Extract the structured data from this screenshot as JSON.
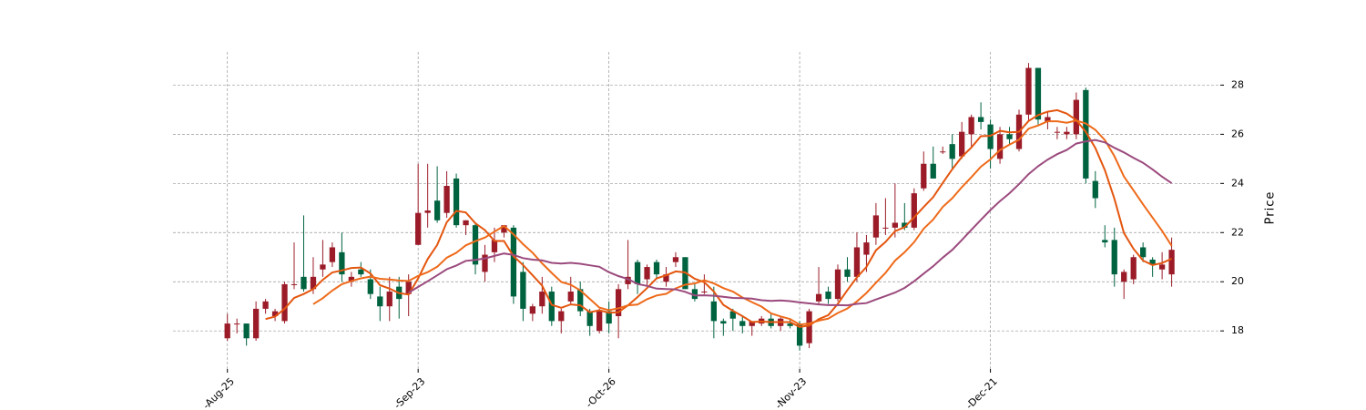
{
  "chart_data": {
    "type": "candlestick",
    "ylabel": "Price",
    "up_color": "#9b1c28",
    "down_color": "#006340",
    "grid": true,
    "xlim": [
      -5.7,
      104.1
    ],
    "xticks": [
      {
        "value": 0,
        "label": "-Aug-25"
      },
      {
        "value": 20,
        "label": "-Sep-23"
      },
      {
        "value": 40,
        "label": "-Oct-26"
      },
      {
        "value": 60,
        "label": "-Nov-23"
      },
      {
        "value": 80,
        "label": "-Dec-21"
      }
    ],
    "ylim": [
      16.45,
      29.35
    ],
    "yticks": [
      18,
      20,
      22,
      24,
      26,
      28
    ],
    "open": [
      17.7,
      18.3,
      18.3,
      17.7,
      18.9,
      18.6,
      18.4,
      19.9,
      20.2,
      19.7,
      20.5,
      20.8,
      21.2,
      20.0,
      20.5,
      20.1,
      19.4,
      19.0,
      19.8,
      19.5,
      21.5,
      22.8,
      23.3,
      22.8,
      24.2,
      22.3,
      22.3,
      20.4,
      21.2,
      22.0,
      22.2,
      20.4,
      18.7,
      19.0,
      19.6,
      18.4,
      19.2,
      19.7,
      18.8,
      18.0,
      18.8,
      18.6,
      19.9,
      20.8,
      20.1,
      20.8,
      20.0,
      20.8,
      21.0,
      19.7,
      19.6,
      19.2,
      18.4,
      18.8,
      18.4,
      18.2,
      18.3,
      18.5,
      18.2,
      18.3,
      18.3,
      17.5,
      19.2,
      19.6,
      19.3,
      20.5,
      20.2,
      21.1,
      21.8,
      22.2,
      22.2,
      22.4,
      22.2,
      23.8,
      24.8,
      25.3,
      25.6,
      25.1,
      26.0,
      26.7,
      26.4,
      25.0,
      26.0,
      25.4,
      26.8,
      28.7,
      26.5,
      26.1,
      26.0,
      26.0,
      27.8,
      24.1,
      21.7,
      21.7,
      20.0,
      20.1,
      21.4,
      20.9,
      20.5,
      20.3
    ],
    "high": [
      18.7,
      18.5,
      18.3,
      19.2,
      19.3,
      18.9,
      20.0,
      21.6,
      22.7,
      21.0,
      21.7,
      21.6,
      22.0,
      20.4,
      20.8,
      20.5,
      19.8,
      20.2,
      20.2,
      20.3,
      24.8,
      24.8,
      24.7,
      24.5,
      24.4,
      22.5,
      22.4,
      21.5,
      22.2,
      22.3,
      22.3,
      20.8,
      19.1,
      20.2,
      19.8,
      18.9,
      20.2,
      20.0,
      18.9,
      18.9,
      19.2,
      19.9,
      21.7,
      20.9,
      20.7,
      20.9,
      20.6,
      21.2,
      21.0,
      19.9,
      20.3,
      19.8,
      18.5,
      18.9,
      18.6,
      18.4,
      18.6,
      18.7,
      18.6,
      18.5,
      18.4,
      18.9,
      20.6,
      19.8,
      20.7,
      21.0,
      22.0,
      21.9,
      23.2,
      23.4,
      24.0,
      23.2,
      23.8,
      25.3,
      25.5,
      25.5,
      26.0,
      26.5,
      26.8,
      27.3,
      26.6,
      26.3,
      26.3,
      27.0,
      28.9,
      28.7,
      26.9,
      26.3,
      26.3,
      27.7,
      27.9,
      24.5,
      22.3,
      22.2,
      20.5,
      21.1,
      21.6,
      21.0,
      21.2,
      21.8
    ],
    "low": [
      17.6,
      17.9,
      17.4,
      17.6,
      18.7,
      18.4,
      18.3,
      19.7,
      19.6,
      19.5,
      20.2,
      20.6,
      20.0,
      19.8,
      20.2,
      19.3,
      18.4,
      18.4,
      18.5,
      18.6,
      21.5,
      22.2,
      22.4,
      22.6,
      22.2,
      21.9,
      20.3,
      20.0,
      20.8,
      21.8,
      19.1,
      18.4,
      18.4,
      18.7,
      18.2,
      17.9,
      19.1,
      18.6,
      17.8,
      17.9,
      17.9,
      17.7,
      19.7,
      19.5,
      19.8,
      20.1,
      19.8,
      20.6,
      19.7,
      19.2,
      19.5,
      17.7,
      17.8,
      18.0,
      17.9,
      17.8,
      18.2,
      18.1,
      18.0,
      18.1,
      17.2,
      17.3,
      19.1,
      19.1,
      19.2,
      20.0,
      20.0,
      20.4,
      21.5,
      21.9,
      21.8,
      22.1,
      22.1,
      23.7,
      24.2,
      25.2,
      24.6,
      25.0,
      25.5,
      26.2,
      24.6,
      24.8,
      25.6,
      25.3,
      26.5,
      26.4,
      26.2,
      25.8,
      25.8,
      25.8,
      24.0,
      23.0,
      21.4,
      19.8,
      19.3,
      19.9,
      20.8,
      20.2,
      20.1,
      19.8
    ],
    "close": [
      18.3,
      18.3,
      17.7,
      18.9,
      19.2,
      18.8,
      19.9,
      19.9,
      19.7,
      20.2,
      20.7,
      21.4,
      20.3,
      20.2,
      20.3,
      19.5,
      19.0,
      19.6,
      19.3,
      20.0,
      22.8,
      22.9,
      22.5,
      23.9,
      22.3,
      22.5,
      20.7,
      21.1,
      21.7,
      22.3,
      19.4,
      18.9,
      19.0,
      19.6,
      18.4,
      18.8,
      19.6,
      18.8,
      18.2,
      18.8,
      18.3,
      19.7,
      20.2,
      19.9,
      20.6,
      20.3,
      20.3,
      21.0,
      19.7,
      19.3,
      19.6,
      18.4,
      18.3,
      18.5,
      18.2,
      18.4,
      18.5,
      18.2,
      18.5,
      18.2,
      17.4,
      18.8,
      19.5,
      19.3,
      20.5,
      20.2,
      21.4,
      21.6,
      22.7,
      22.2,
      22.4,
      22.2,
      23.6,
      24.8,
      24.2,
      25.3,
      25.0,
      26.1,
      26.7,
      26.5,
      25.4,
      26.0,
      25.8,
      26.8,
      28.7,
      26.6,
      26.7,
      26.1,
      26.1,
      27.4,
      24.2,
      23.4,
      21.6,
      20.3,
      20.4,
      21.0,
      21.0,
      20.7,
      20.7,
      21.3
    ],
    "moving_averages": [
      {
        "color": "#e4560f",
        "values": [
          null,
          null,
          null,
          null,
          18.48,
          18.58,
          18.9,
          19.34,
          19.5,
          19.7,
          20.08,
          20.38,
          20.46,
          20.56,
          20.58,
          20.34,
          19.86,
          19.72,
          19.54,
          19.48,
          20.14,
          20.92,
          21.5,
          22.42,
          22.88,
          22.82,
          22.38,
          22.1,
          21.66,
          21.66,
          21.04,
          20.68,
          20.26,
          19.84,
          19.06,
          18.94,
          19.08,
          19.04,
          18.76,
          18.84,
          18.74,
          18.76,
          19.04,
          19.38,
          19.74,
          20.14,
          20.26,
          20.42,
          20.38,
          20.12,
          19.98,
          19.6,
          19.06,
          18.82,
          18.6,
          18.36,
          18.38,
          18.36,
          18.36,
          18.36,
          18.16,
          18.22,
          18.48,
          18.64,
          19.1,
          19.66,
          20.18,
          20.6,
          21.28,
          21.62,
          22.06,
          22.22,
          22.62,
          23.04,
          23.44,
          24.02,
          24.58,
          25.08,
          25.46,
          25.92,
          25.94,
          26.14,
          26.08,
          26.1,
          26.54,
          26.78,
          26.92,
          26.98,
          26.84,
          26.58,
          26.1,
          25.44,
          24.54,
          23.38,
          21.98,
          21.34,
          20.86,
          20.68,
          20.76,
          20.94
        ]
      },
      {
        "color": "#ee6a1a",
        "values": [
          null,
          null,
          null,
          null,
          null,
          null,
          null,
          null,
          null,
          19.09,
          19.33,
          19.64,
          19.9,
          20.03,
          20.14,
          20.21,
          20.12,
          20.09,
          20.05,
          20.03,
          20.24,
          20.39,
          20.61,
          20.98,
          21.18,
          21.48,
          21.65,
          21.8,
          22.04,
          22.27,
          21.93,
          21.53,
          21.18,
          20.75,
          20.36,
          19.99,
          19.88,
          19.65,
          19.3,
          18.95,
          18.84,
          18.92,
          19.04,
          19.07,
          19.29,
          19.44,
          19.51,
          19.73,
          19.88,
          19.93,
          20.06,
          19.93,
          19.74,
          19.6,
          19.36,
          19.17,
          18.99,
          18.71,
          18.59,
          18.48,
          18.26,
          18.3,
          18.42,
          18.5,
          18.73,
          18.91,
          19.2,
          19.54,
          19.96,
          20.36,
          20.86,
          21.2,
          21.61,
          22.16,
          22.53,
          23.04,
          23.4,
          23.85,
          24.25,
          24.68,
          24.98,
          25.36,
          25.58,
          25.78,
          26.23,
          26.36,
          26.53,
          26.53,
          26.47,
          26.56,
          26.44,
          26.18,
          25.76,
          25.11,
          24.28,
          23.72,
          23.15,
          22.61,
          22.07,
          21.46
        ]
      },
      {
        "color": "#9b4a7d",
        "values": [
          null,
          null,
          null,
          null,
          null,
          null,
          null,
          null,
          null,
          null,
          null,
          null,
          null,
          null,
          null,
          null,
          null,
          null,
          null,
          19.56,
          19.79,
          20.02,
          20.26,
          20.51,
          20.66,
          20.85,
          20.89,
          20.95,
          21.05,
          21.15,
          21.09,
          20.96,
          20.9,
          20.87,
          20.77,
          20.74,
          20.77,
          20.73,
          20.67,
          20.61,
          20.39,
          20.23,
          20.11,
          19.91,
          19.83,
          19.72,
          19.7,
          19.69,
          19.59,
          19.44,
          19.45,
          19.43,
          19.39,
          19.34,
          19.33,
          19.31,
          19.25,
          19.22,
          19.24,
          19.21,
          19.16,
          19.12,
          19.08,
          19.05,
          19.05,
          19.04,
          19.1,
          19.13,
          19.28,
          19.42,
          19.56,
          19.75,
          20.02,
          20.33,
          20.63,
          20.98,
          21.3,
          21.7,
          22.11,
          22.52,
          22.92,
          23.28,
          23.6,
          23.97,
          24.38,
          24.7,
          24.97,
          25.19,
          25.36,
          25.62,
          25.71,
          25.77,
          25.67,
          25.45,
          25.26,
          25.04,
          24.84,
          24.57,
          24.27,
          24.01
        ]
      }
    ]
  }
}
